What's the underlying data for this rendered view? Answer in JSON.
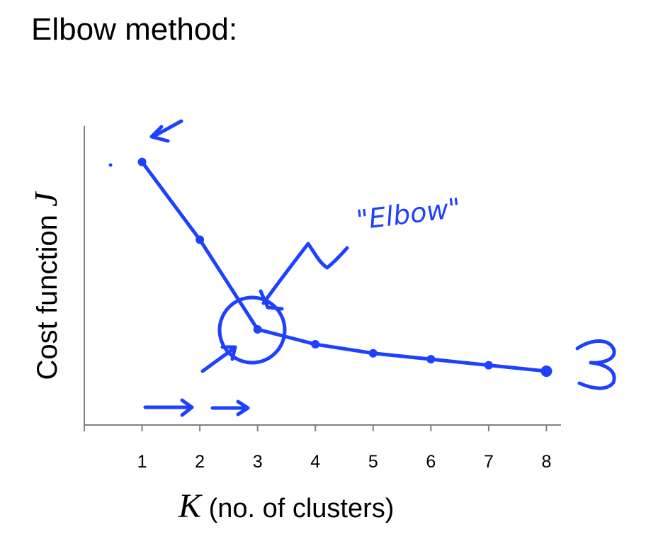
{
  "title": "Elbow method:",
  "annotation_text": "\"Elbow\"",
  "colors": {
    "ink": "#1e40ff",
    "axis": "#808080",
    "text": "#000000",
    "background": "#ffffff"
  },
  "chart_data": {
    "type": "line",
    "title": "",
    "xlabel_var": "K",
    "xlabel_text": " (no. of clusters)",
    "ylabel_text": "Cost function ",
    "ylabel_var": "J",
    "x": [
      1,
      2,
      3,
      4,
      5,
      6,
      7,
      8
    ],
    "y": [
      0.88,
      0.62,
      0.32,
      0.27,
      0.24,
      0.22,
      0.2,
      0.18
    ],
    "xlim": [
      0,
      8.35
    ],
    "ylim": [
      0,
      1
    ],
    "grid": false,
    "x_tick_labels": [
      "1",
      "2",
      "3",
      "4",
      "5",
      "6",
      "7",
      "8"
    ],
    "y_ticks_shown": false,
    "highlight_point": 3
  }
}
